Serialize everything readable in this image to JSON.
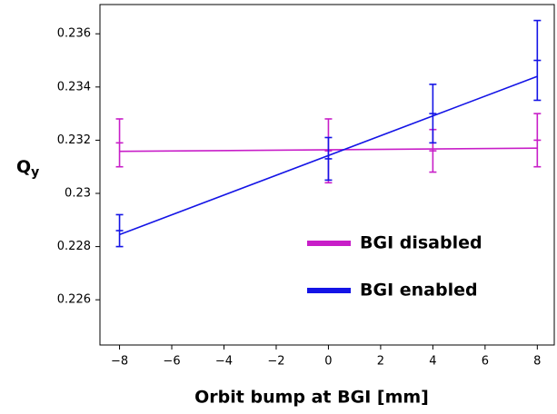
{
  "chart_data": {
    "type": "errorbar",
    "x_label": "Orbit bump at BGI  [mm]",
    "y_label": "Q",
    "y_label_subscript": "y",
    "xlim": [
      -8.75,
      8.65
    ],
    "ylim": [
      0.2243,
      0.2371
    ],
    "xticks": [
      {
        "value": -8,
        "label": "−8"
      },
      {
        "value": -6,
        "label": "−6"
      },
      {
        "value": -4,
        "label": "−4"
      },
      {
        "value": -2,
        "label": "−2"
      },
      0,
      2,
      4,
      6,
      8
    ],
    "yticks": [
      0.226,
      0.228,
      0.23,
      0.232,
      0.234,
      0.236
    ],
    "grid": false,
    "legend": "lower right",
    "series": [
      {
        "name": "BGI disabled",
        "color": "#c81ec8",
        "x": [
          -8,
          0,
          4,
          8
        ],
        "values": [
          0.2319,
          0.2316,
          0.2316,
          0.232
        ],
        "errors": [
          0.0009,
          0.0012,
          0.0008,
          0.001
        ],
        "fit": {
          "x": [
            -8,
            8
          ],
          "values": [
            0.23158,
            0.2317
          ]
        }
      },
      {
        "name": "BGI enabled",
        "color": "#1414e6",
        "x": [
          -8,
          0,
          4,
          8
        ],
        "values": [
          0.2286,
          0.2313,
          0.233,
          0.235
        ],
        "errors": [
          0.0006,
          0.0008,
          0.0011,
          0.0015
        ],
        "fit": {
          "x": [
            -8,
            8
          ],
          "values": [
            0.22845,
            0.2344
          ]
        }
      }
    ]
  }
}
